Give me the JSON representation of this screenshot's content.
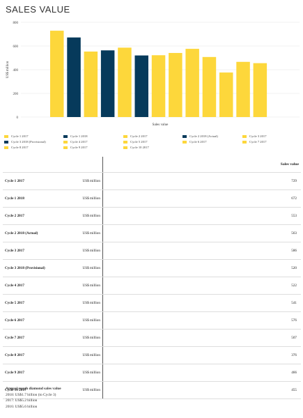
{
  "title": "SALES VALUE",
  "chart_data": {
    "type": "bar",
    "ylabel": "US$ million",
    "xlabel": "Sales value",
    "ylim": [
      0,
      800
    ],
    "yticks": [
      "0",
      "200",
      "400",
      "600",
      "800"
    ],
    "categories": [
      "Cycle 1 2017",
      "Cycle 1 2018",
      "Cycle 2 2017",
      "Cycle 2 2018 (Actual)",
      "Cycle 3 2017",
      "Cycle 3 2018 (Provisional)",
      "Cycle 4 2017",
      "Cycle 5 2017",
      "Cycle 6 2017",
      "Cycle 7 2017",
      "Cycle 8 2017",
      "Cycle 9 2017",
      "Cycle 10 2017"
    ],
    "values": [
      729,
      672,
      553,
      563,
      586,
      520,
      522,
      541,
      576,
      507,
      376,
      466,
      455
    ],
    "colors": [
      "#FDD73B",
      "#063A5B",
      "#FDD73B",
      "#063A5B",
      "#FDD73B",
      "#063A5B",
      "#FDD73B",
      "#FDD73B",
      "#FDD73B",
      "#FDD73B",
      "#FDD73B",
      "#FDD73B",
      "#FDD73B"
    ],
    "grid": true,
    "legend_placement": "bottom"
  },
  "legend": [
    {
      "label": "Cycle 1 2017",
      "color": "#FDD73B"
    },
    {
      "label": "Cycle 1 2018",
      "color": "#063A5B"
    },
    {
      "label": "Cycle 2 2017",
      "color": "#FDD73B"
    },
    {
      "label": "Cycle 2 2018 (Actual)",
      "color": "#063A5B"
    },
    {
      "label": "Cycle 3 2017",
      "color": "#FDD73B"
    },
    {
      "label": "Cycle 3 2018 (Provisional)",
      "color": "#063A5B"
    },
    {
      "label": "Cycle 4 2017",
      "color": "#FDD73B"
    },
    {
      "label": "Cycle 5 2017",
      "color": "#FDD73B"
    },
    {
      "label": "Cycle 6 2017",
      "color": "#FDD73B"
    },
    {
      "label": "Cycle 7 2017",
      "color": "#FDD73B"
    },
    {
      "label": "Cycle 8 2017",
      "color": "#FDD73B"
    },
    {
      "label": "Cycle 9 2017",
      "color": "#FDD73B"
    },
    {
      "label": "Cycle 10 2017",
      "color": "#FDD73B"
    }
  ],
  "table": {
    "header": "Sales value",
    "rows": [
      {
        "cycle": "Cycle 1 2017",
        "unit": "US$ million",
        "value": "729"
      },
      {
        "cycle": "Cycle 1 2018",
        "unit": "US$ million",
        "value": "672"
      },
      {
        "cycle": "Cycle 2 2017",
        "unit": "US$ million",
        "value": "553"
      },
      {
        "cycle": "Cycle 2 2018 (Actual)",
        "unit": "US$ million",
        "value": "563"
      },
      {
        "cycle": "Cycle 3 2017",
        "unit": "US$ million",
        "value": "586"
      },
      {
        "cycle": "Cycle 3 2018 (Provisional)",
        "unit": "US$ million",
        "value": "520"
      },
      {
        "cycle": "Cycle 4 2017",
        "unit": "US$ million",
        "value": "522"
      },
      {
        "cycle": "Cycle 5 2017",
        "unit": "US$ million",
        "value": "541"
      },
      {
        "cycle": "Cycle 6 2017",
        "unit": "US$ million",
        "value": "576"
      },
      {
        "cycle": "Cycle 7 2017",
        "unit": "US$ million",
        "value": "507"
      },
      {
        "cycle": "Cycle 8 2017",
        "unit": "US$ million",
        "value": "376"
      },
      {
        "cycle": "Cycle 9 2017",
        "unit": "US$ million",
        "value": "466"
      },
      {
        "cycle": "Cycle 10 2017",
        "unit": "US$ million",
        "value": "455"
      }
    ]
  },
  "notes": {
    "heading": "Annual rough diamond sales value",
    "lines": [
      "2018: US$1.7 billion (to Cycle 3)",
      "2017: US$5.2 billion",
      "2016: US$5.6 billion"
    ]
  }
}
